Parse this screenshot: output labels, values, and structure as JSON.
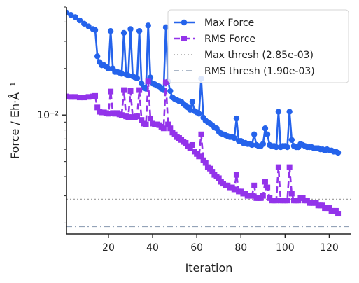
{
  "chart_data": {
    "type": "line",
    "title": "",
    "xlabel": "Iteration",
    "ylabel": "Force / Eh·Å⁻¹",
    "yscale": "log",
    "xlim": [
      1,
      130
    ],
    "ylim": [
      0.0017,
      0.05
    ],
    "x_ticks": [
      20,
      40,
      60,
      80,
      100,
      120
    ],
    "y_major_ticks": [
      {
        "value": 0.01,
        "label": "10⁻²"
      }
    ],
    "grid": false,
    "legend_position": "top-right",
    "series": [
      {
        "name": "Max Force",
        "color": "#2563eb",
        "style": "solid",
        "marker": "circle",
        "x": [
          1,
          3,
          5,
          7,
          9,
          11,
          13,
          14,
          15,
          16,
          17,
          18,
          19,
          20,
          21,
          22,
          23,
          24,
          25,
          26,
          27,
          28,
          29,
          30,
          31,
          32,
          33,
          34,
          35,
          36,
          37,
          38,
          39,
          40,
          41,
          42,
          43,
          44,
          45,
          46,
          47,
          48,
          49,
          50,
          51,
          52,
          53,
          54,
          55,
          56,
          57,
          58,
          59,
          60,
          61,
          62,
          63,
          64,
          65,
          66,
          67,
          68,
          69,
          70,
          71,
          72,
          73,
          74,
          75,
          76,
          77,
          78,
          79,
          80,
          81,
          82,
          83,
          84,
          85,
          86,
          87,
          88,
          89,
          90,
          91,
          92,
          93,
          94,
          95,
          96,
          97,
          98,
          99,
          100,
          101,
          102,
          103,
          104,
          105,
          106,
          107,
          108,
          109,
          110,
          111,
          112,
          113,
          114,
          115,
          116,
          117,
          118,
          119,
          120,
          121,
          122,
          123,
          124
        ],
        "values": [
          0.046,
          0.0445,
          0.043,
          0.041,
          0.039,
          0.0375,
          0.036,
          0.0355,
          0.024,
          0.022,
          0.021,
          0.021,
          0.0205,
          0.02,
          0.035,
          0.02,
          0.019,
          0.019,
          0.0188,
          0.0185,
          0.034,
          0.0183,
          0.018,
          0.036,
          0.0178,
          0.0175,
          0.0173,
          0.035,
          0.016,
          0.015,
          0.0148,
          0.038,
          0.0175,
          0.016,
          0.0158,
          0.0155,
          0.0153,
          0.0148,
          0.0145,
          0.037,
          0.0165,
          0.0143,
          0.013,
          0.0127,
          0.0125,
          0.0123,
          0.0122,
          0.0118,
          0.0115,
          0.0112,
          0.0108,
          0.0122,
          0.0106,
          0.0104,
          0.0102,
          0.0172,
          0.0096,
          0.0092,
          0.009,
          0.0088,
          0.0086,
          0.0083,
          0.0082,
          0.0078,
          0.0076,
          0.0075,
          0.0074,
          0.0073,
          0.0072,
          0.0072,
          0.0071,
          0.0095,
          0.0068,
          0.0068,
          0.0066,
          0.0066,
          0.0065,
          0.0065,
          0.0064,
          0.0075,
          0.0064,
          0.0063,
          0.0063,
          0.0065,
          0.0082,
          0.0075,
          0.0064,
          0.0063,
          0.0063,
          0.0062,
          0.0105,
          0.0062,
          0.0063,
          0.0063,
          0.0062,
          0.0105,
          0.0069,
          0.0063,
          0.0062,
          0.0062,
          0.0065,
          0.0064,
          0.0063,
          0.0062,
          0.0062,
          0.0062,
          0.0061,
          0.0061,
          0.0061,
          0.006,
          0.006,
          0.0059,
          0.006,
          0.0059,
          0.0059,
          0.0058,
          0.0058,
          0.0057
        ]
      },
      {
        "name": "RMS Force",
        "color": "#9333ea",
        "style": "dashed",
        "marker": "square",
        "x": [
          1,
          3,
          5,
          7,
          9,
          11,
          13,
          14,
          15,
          16,
          17,
          18,
          19,
          20,
          21,
          22,
          23,
          24,
          25,
          26,
          27,
          28,
          29,
          30,
          31,
          32,
          33,
          34,
          35,
          36,
          37,
          38,
          39,
          40,
          41,
          42,
          43,
          44,
          45,
          46,
          47,
          48,
          49,
          50,
          51,
          52,
          53,
          54,
          55,
          56,
          57,
          58,
          59,
          60,
          61,
          62,
          63,
          64,
          65,
          66,
          67,
          68,
          69,
          70,
          71,
          72,
          73,
          74,
          75,
          76,
          77,
          78,
          79,
          80,
          81,
          82,
          83,
          84,
          85,
          86,
          87,
          88,
          89,
          90,
          91,
          92,
          93,
          94,
          95,
          96,
          97,
          98,
          99,
          100,
          101,
          102,
          103,
          104,
          105,
          106,
          107,
          108,
          109,
          110,
          111,
          112,
          113,
          114,
          115,
          116,
          117,
          118,
          119,
          120,
          121,
          122,
          123,
          124
        ],
        "values": [
          0.0132,
          0.0131,
          0.0131,
          0.013,
          0.013,
          0.0131,
          0.0132,
          0.0133,
          0.0112,
          0.0105,
          0.0104,
          0.0104,
          0.0103,
          0.0102,
          0.0142,
          0.0103,
          0.0102,
          0.0103,
          0.0101,
          0.01,
          0.0145,
          0.0098,
          0.0097,
          0.0143,
          0.0097,
          0.0097,
          0.0098,
          0.0145,
          0.0093,
          0.0088,
          0.0087,
          0.0165,
          0.0095,
          0.0088,
          0.0087,
          0.0087,
          0.0086,
          0.0084,
          0.0082,
          0.0163,
          0.0087,
          0.0082,
          0.0077,
          0.0075,
          0.0072,
          0.0071,
          0.0069,
          0.0067,
          0.0066,
          0.0063,
          0.0061,
          0.0064,
          0.0058,
          0.0056,
          0.0054,
          0.0075,
          0.0051,
          0.0049,
          0.0046,
          0.0045,
          0.0043,
          0.0041,
          0.004,
          0.0039,
          0.0037,
          0.0036,
          0.0035,
          0.0035,
          0.0034,
          0.0034,
          0.0033,
          0.0041,
          0.0032,
          0.0032,
          0.0031,
          0.0031,
          0.003,
          0.003,
          0.003,
          0.0035,
          0.0029,
          0.0029,
          0.0029,
          0.003,
          0.0037,
          0.0034,
          0.0029,
          0.0028,
          0.0028,
          0.0028,
          0.0046,
          0.0028,
          0.0028,
          0.0028,
          0.0028,
          0.0046,
          0.0031,
          0.0028,
          0.0028,
          0.0028,
          0.0029,
          0.0029,
          0.0028,
          0.0028,
          0.0027,
          0.0027,
          0.0027,
          0.0027,
          0.0026,
          0.0026,
          0.0026,
          0.0025,
          0.0025,
          0.0025,
          0.0024,
          0.0024,
          0.0024,
          0.0023
        ]
      }
    ],
    "thresholds": [
      {
        "name": "Max thresh (2.85e-03)",
        "value": 0.00285,
        "color": "#a3a3a3",
        "style": "dotted"
      },
      {
        "name": "RMS thresh (1.90e-03)",
        "value": 0.0019,
        "color": "#94a3b8",
        "style": "dashdot"
      }
    ]
  }
}
